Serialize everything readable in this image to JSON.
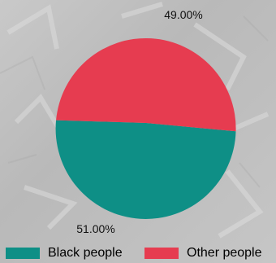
{
  "chart_data": {
    "type": "pie",
    "slices": [
      {
        "label": "Black people",
        "value": 51.0,
        "display": "51.00%",
        "color": "#0e8f86"
      },
      {
        "label": "Other people",
        "value": 49.0,
        "display": "49.00%",
        "color": "#e63c50"
      }
    ],
    "legend": {
      "placement": "bottom",
      "items": [
        {
          "label": "Black people",
          "color": "#0e8f86"
        },
        {
          "label": "Other people",
          "color": "#e63c50"
        }
      ]
    }
  }
}
